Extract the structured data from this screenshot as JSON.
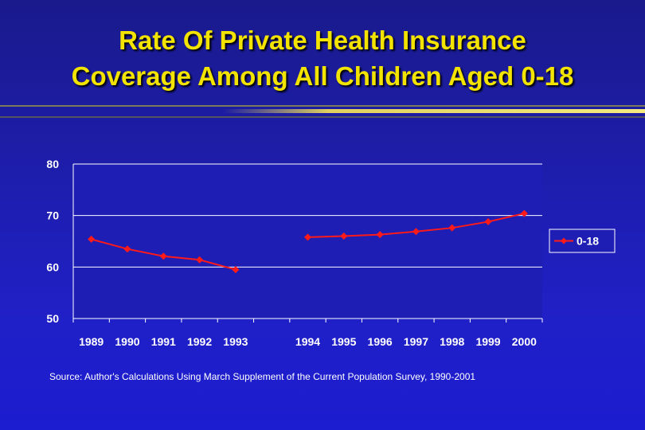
{
  "page": {
    "title_line1": "Rate Of Private Health Insurance",
    "title_line2": "Coverage Among All Children Aged 0-18",
    "source": "Source: Author's Calculations Using March Supplement of the Current Population Survey, 1990-2001"
  },
  "colors": {
    "title": "#f3e300",
    "series": "#ff1a1a",
    "axis_text": "#ffffff",
    "plot_background": "#1e1eb4"
  },
  "chart_data": {
    "type": "line",
    "title": "",
    "xlabel": "",
    "ylabel": "",
    "ylim": [
      50,
      80
    ],
    "yticks": [
      50,
      60,
      70,
      80
    ],
    "grid": "horizontal",
    "legend_position": "right",
    "categories": [
      "1989",
      "1990",
      "1991",
      "1992",
      "1993",
      "1994",
      "1995",
      "1996",
      "1997",
      "1998",
      "1999",
      "2000"
    ],
    "category_slots": [
      0,
      1,
      2,
      3,
      4,
      6,
      7,
      8,
      9,
      10,
      11,
      12
    ],
    "slot_count": 13,
    "series": [
      {
        "name": "0-18",
        "color": "#ff1a1a",
        "marker": "diamond",
        "segments": [
          {
            "x": [
              "1989",
              "1990",
              "1991",
              "1992",
              "1993"
            ],
            "y": [
              65.4,
              63.5,
              62.1,
              61.4,
              59.5
            ]
          },
          {
            "x": [
              "1994",
              "1995",
              "1996",
              "1997",
              "1998",
              "1999",
              "2000"
            ],
            "y": [
              65.8,
              66.0,
              66.3,
              66.9,
              67.6,
              68.8,
              70.4
            ]
          }
        ]
      }
    ]
  }
}
